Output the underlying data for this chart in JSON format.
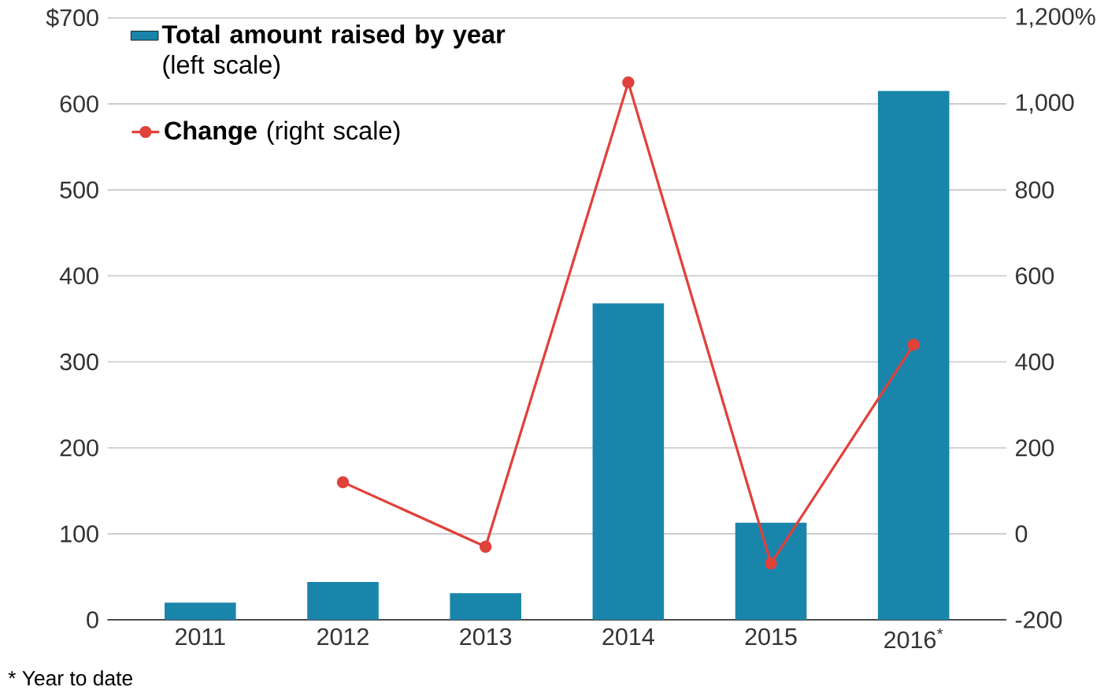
{
  "chart_data": {
    "type": "bar",
    "categories": [
      "2011",
      "2012",
      "2013",
      "2014",
      "2015",
      "2016$^{*}$"
    ],
    "series": [
      {
        "name": "**Total amount raised by year** (left scale)",
        "color": "#1a85ab",
        "values": [
          20,
          44,
          31,
          368,
          113,
          615
        ]
      },
      {
        "name": "**Change** (right scale)",
        "type": "line",
        "axis": "y2",
        "color": "#e0413b",
        "marker": "circle",
        "values": [
          null,
          120,
          -30,
          1050,
          -69,
          440
        ]
      }
    ],
    "ylim": [
      0,
      700
    ],
    "yticks": [
      0,
      100,
      200,
      300,
      400,
      500,
      600,
      {
        "value": 700,
        "label": "$700"
      }
    ],
    "y2lim": [
      -200,
      1200
    ],
    "y2ticks": [
      -200,
      0,
      200,
      400,
      600,
      800,
      {
        "value": 1000,
        "label": "1,000"
      },
      {
        "value": 1200,
        "label": "1,200%"
      }
    ],
    "grid": "y",
    "legend": "top left",
    "annotations": [
      "* Year to date"
    ]
  }
}
